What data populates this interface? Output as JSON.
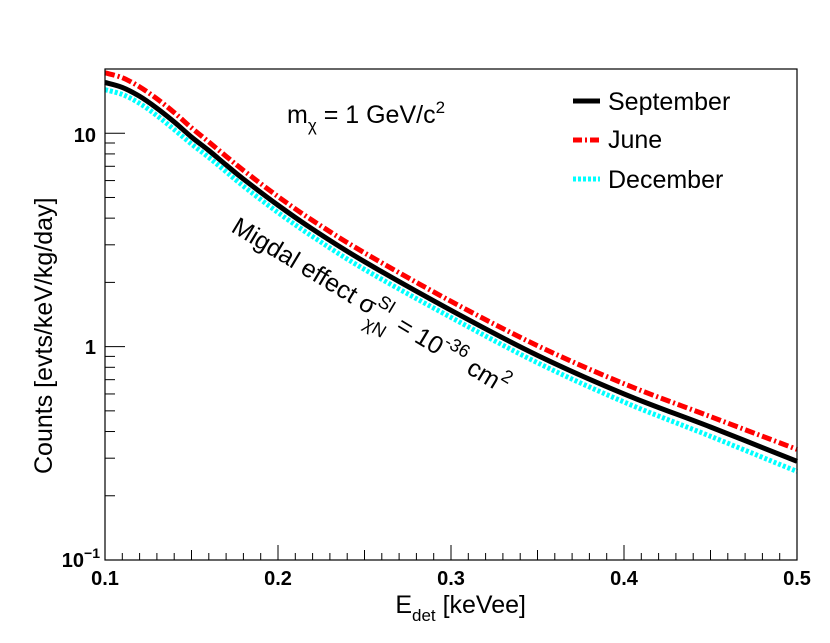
{
  "chart_data": {
    "type": "line",
    "xlabel": {
      "base": "E",
      "sub": "det",
      "rest": " [keVee]"
    },
    "ylabel": "Counts [evts/keV/kg/day]",
    "xlim": [
      0.1,
      0.5
    ],
    "ylim": [
      0.1,
      20
    ],
    "yscale": "log",
    "x_ticks": [
      "0.1",
      "0.2",
      "0.3",
      "0.4",
      "0.5"
    ],
    "y_ticks": [
      {
        "value": 10,
        "label": "10"
      },
      {
        "value": 1,
        "label": "1"
      },
      {
        "value": 0.1,
        "base": "10",
        "sup": "−1"
      }
    ],
    "legend_position": "top-right",
    "series": [
      {
        "name": "September",
        "color": "#000000",
        "style": "solid",
        "x": [
          0.1,
          0.11,
          0.12,
          0.13,
          0.14,
          0.15,
          0.16,
          0.17,
          0.18,
          0.2,
          0.22,
          0.25,
          0.3,
          0.35,
          0.4,
          0.45,
          0.5
        ],
        "y": [
          17.3,
          16.4,
          14.9,
          13.1,
          11.3,
          9.6,
          8.3,
          7.1,
          6.1,
          4.6,
          3.55,
          2.5,
          1.48,
          0.91,
          0.6,
          0.42,
          0.29
        ]
      },
      {
        "name": "June",
        "color": "#ff0000",
        "style": "dash-dot",
        "x": [
          0.1,
          0.11,
          0.12,
          0.13,
          0.14,
          0.15,
          0.16,
          0.17,
          0.18,
          0.2,
          0.22,
          0.25,
          0.3,
          0.35,
          0.4,
          0.45,
          0.5
        ],
        "y": [
          19.2,
          18.2,
          16.5,
          14.5,
          12.5,
          10.6,
          9.1,
          7.8,
          6.7,
          5.05,
          3.9,
          2.75,
          1.63,
          1.01,
          0.67,
          0.47,
          0.33
        ]
      },
      {
        "name": "December",
        "color": "#00ffff",
        "style": "dotted",
        "x": [
          0.1,
          0.11,
          0.12,
          0.13,
          0.14,
          0.15,
          0.16,
          0.17,
          0.18,
          0.2,
          0.22,
          0.25,
          0.3,
          0.35,
          0.4,
          0.45,
          0.5
        ],
        "y": [
          16.0,
          15.2,
          13.8,
          12.1,
          10.4,
          8.9,
          7.7,
          6.6,
          5.65,
          4.25,
          3.28,
          2.3,
          1.37,
          0.84,
          0.55,
          0.38,
          0.26
        ]
      }
    ],
    "annotations": {
      "mass": {
        "prefix": "m",
        "sub": "χ",
        "mid": " = 1 GeV/c",
        "sup": "2"
      },
      "migdal": {
        "text": "Migdal effect σ",
        "sup": "SI",
        "sub": "χN",
        "tail": " = 10",
        "exp": "-36",
        "unit": " cm",
        "unit_sup": "2"
      }
    }
  }
}
